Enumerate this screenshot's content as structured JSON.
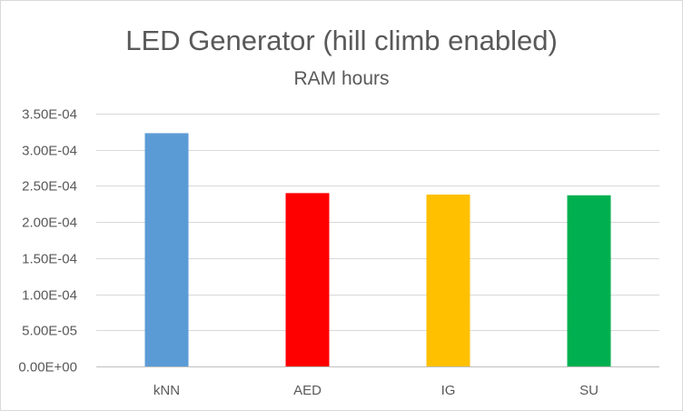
{
  "chart_data": {
    "type": "bar",
    "title": "LED Generator (hill climb enabled)",
    "subtitle": "RAM hours",
    "xlabel": "",
    "ylabel": "",
    "categories": [
      "kNN",
      "AED",
      "IG",
      "SU"
    ],
    "values": [
      0.000323,
      0.00024,
      0.000238,
      0.000237
    ],
    "colors": [
      "#5b9bd5",
      "#ff0000",
      "#ffc000",
      "#00b050"
    ],
    "ylim": [
      0,
      0.00035
    ],
    "yticks": [
      0,
      5e-05,
      0.0001,
      0.00015,
      0.0002,
      0.00025,
      0.0003,
      0.00035
    ],
    "ytick_labels": [
      "0.00E+00",
      "5.00E-05",
      "1.00E-04",
      "1.50E-04",
      "2.00E-04",
      "2.50E-04",
      "3.00E-04",
      "3.50E-04"
    ],
    "grid": true,
    "legend": "none"
  }
}
